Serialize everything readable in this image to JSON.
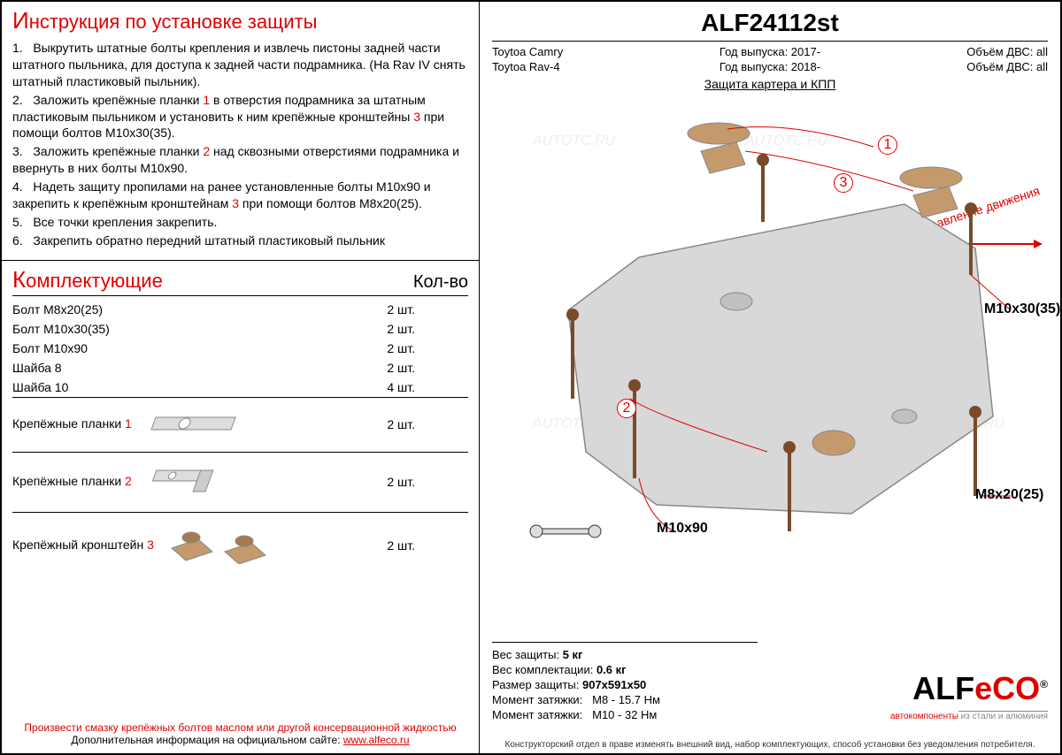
{
  "instructions": {
    "title_first": "И",
    "title_rest": "нструкция по установке защиты",
    "items": [
      "1.   Выкрутить штатные болты крепления и извлечь пистоны задней части штатного пыльника, для доступа к задней части подрамника. (На Rav IV снять штатный пластиковый пыльник).",
      "2.   Заложить крепёжные планки <span class='red'>1</span> в отверстия подрамника за штатным пластиковым пыльником и установить к ним крепёжные кронштейны <span class='red'>3</span> при помощи болтов М10х30(35).",
      "3.   Заложить крепёжные планки <span class='red'>2</span> над сквозными отверстиями подрамника и ввернуть в них болты М10х90.",
      "4.   Надеть защиту пропилами на ранее установленные болты М10х90 и закрепить к крепёжным кронштейнам <span class='red'>3</span> при помощи болтов М8х20(25).",
      "5.   Все точки крепления закрепить.",
      "6.   Закрепить обратно передний штатный пластиковый пыльник"
    ]
  },
  "parts": {
    "title_first": "К",
    "title_rest": "омплектующие",
    "qty_title": "Кол-во",
    "rows": [
      {
        "name": "Болт М8x20(25)",
        "qty": "2 шт."
      },
      {
        "name": "Болт М10x30(35)",
        "qty": "2 шт."
      },
      {
        "name": "Болт М10x90",
        "qty": "2 шт."
      },
      {
        "name": "Шайба 8",
        "qty": "2 шт."
      },
      {
        "name": "Шайба 10",
        "qty": "4 шт."
      }
    ],
    "iconrows": [
      {
        "name": "Крепёжные планки <span class='red'>1</span>",
        "qty": "2 шт.",
        "svg": "plank1"
      },
      {
        "name": "Крепёжные планки <span class='red'>2</span>",
        "qty": "2 шт.",
        "svg": "plank2"
      },
      {
        "name": "Крепёжный кронштейн <span class='red'>3</span>",
        "qty": "2 шт.",
        "svg": "bracket"
      }
    ]
  },
  "footer": {
    "note": "Произвести смазку крепёжных болтов маслом или другой консервационной жидкостью",
    "info": "Дополнительная информация на официальном сайте: ",
    "link": "www.alfeco.ru"
  },
  "right": {
    "code": "ALF24112st",
    "vehicles": [
      {
        "name": "Toytoa Camry",
        "year_lbl": "Год выпуска:",
        "year": "2017-",
        "eng_lbl": "Объём ДВС:",
        "eng": "all"
      },
      {
        "name": "Toytoa Rav-4",
        "year_lbl": "Год выпуска:",
        "year": "2018-",
        "eng_lbl": "Объём ДВС:",
        "eng": "all"
      }
    ],
    "subtitle": "Защита картера и КПП",
    "direction": "Направление движения",
    "labels": {
      "m10_30": "М10x30(35)",
      "m8_20": "М8x20(25)",
      "m10_90": "М10x90"
    },
    "callouts": {
      "c1": "1",
      "c2": "2",
      "c3": "3"
    }
  },
  "specs": {
    "weight_lbl": "Вес защиты:",
    "weight": "5 кг",
    "kit_weight_lbl": "Вес комплектации:",
    "kit_weight": "0.6 кг",
    "size_lbl": "Размер защиты:",
    "size": "907x591x50",
    "torque1_lbl": "Момент затяжки:",
    "torque1": "М8 - 15.7 Нм",
    "torque2_lbl": "Момент затяжки:",
    "torque2": "М10 - 32 Нм"
  },
  "logo": {
    "main1": "ALF",
    "main2": "eCO",
    "reg": "®",
    "sub": "автокомпоненты",
    "sub2": " из стали и алюминия"
  },
  "disclaimer": "Конструкторский отдел в праве изменять внешний вид, набор комплектующих, способ установки без уведомления потребителя.",
  "watermark": "AUTOTC.RU"
}
